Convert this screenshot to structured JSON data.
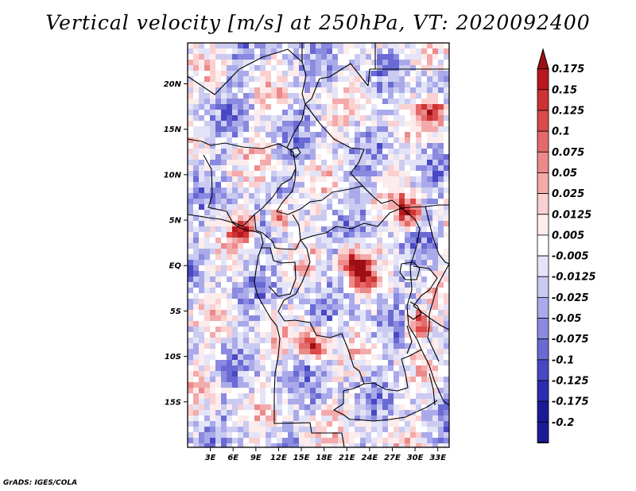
{
  "title": "Vertical velocity [m/s] at 250hPa, VT: 2020092400",
  "credit": "GrADS: IGES/COLA",
  "map": {
    "lat_labels": [
      "20N",
      "15N",
      "10N",
      "5N",
      "EQ",
      "5S",
      "10S",
      "15S"
    ],
    "lat_values": [
      20,
      15,
      10,
      5,
      0,
      -5,
      -10,
      -15
    ],
    "lon_labels": [
      "3E",
      "6E",
      "9E",
      "12E",
      "15E",
      "18E",
      "21E",
      "24E",
      "27E",
      "30E",
      "33E"
    ],
    "lon_values": [
      3,
      6,
      9,
      12,
      15,
      18,
      21,
      24,
      27,
      30,
      33
    ],
    "lat_range": [
      -20,
      24.5
    ],
    "lon_range": [
      0,
      34.5
    ]
  },
  "colorbar": {
    "levels": [
      "0.175",
      "0.15",
      "0.125",
      "0.1",
      "0.075",
      "0.05",
      "0.025",
      "0.0125",
      "0.005",
      "-0.005",
      "-0.0125",
      "-0.025",
      "-0.05",
      "-0.075",
      "-0.1",
      "-0.125",
      "-0.175",
      "-0.2"
    ],
    "colors": [
      "#9e0f15",
      "#b7191e",
      "#cc3333",
      "#dd4a4a",
      "#e46a6a",
      "#ec8a8a",
      "#f4aaaa",
      "#fad0d0",
      "#fdecec",
      "#ffffff",
      "#e4e4f8",
      "#cbcbf1",
      "#aaaaea",
      "#8a8ae0",
      "#6a6ad4",
      "#4848c4",
      "#2d2db0",
      "#1a1a98",
      "#0d0d80"
    ]
  }
}
